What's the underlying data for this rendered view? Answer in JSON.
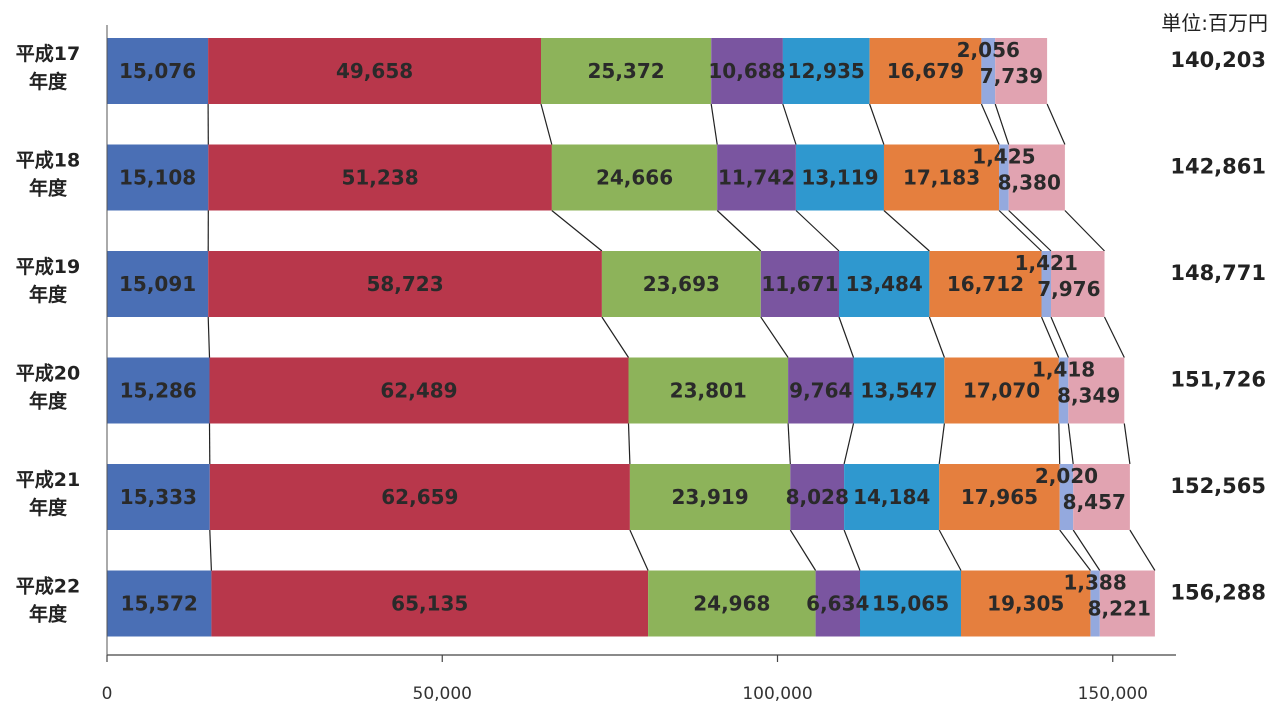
{
  "chart_data": {
    "type": "bar",
    "orientation": "horizontal",
    "stacked": true,
    "unit": "単位:百万円",
    "categories": [
      [
        "平成17",
        "年度"
      ],
      [
        "平成18",
        "年度"
      ],
      [
        "平成19",
        "年度"
      ],
      [
        "平成20",
        "年度"
      ],
      [
        "平成21",
        "年度"
      ],
      [
        "平成22",
        "年度"
      ]
    ],
    "series": [
      {
        "color": "#4a6fb5",
        "values": [
          15076,
          15108,
          15091,
          15286,
          15333,
          15572
        ]
      },
      {
        "color": "#b8374b",
        "values": [
          49658,
          51238,
          58723,
          62489,
          62659,
          65135
        ]
      },
      {
        "color": "#8db35a",
        "values": [
          25372,
          24666,
          23693,
          23801,
          23919,
          24968
        ]
      },
      {
        "color": "#7a55a0",
        "values": [
          10688,
          11742,
          11671,
          9764,
          8028,
          6634
        ]
      },
      {
        "color": "#2f98cf",
        "values": [
          12935,
          13119,
          13484,
          13547,
          14184,
          15065
        ]
      },
      {
        "color": "#e57f3e",
        "values": [
          16679,
          17183,
          16712,
          17070,
          17965,
          19305
        ]
      },
      {
        "color": "#94a9de",
        "values": [
          2056,
          1425,
          1421,
          1418,
          2020,
          1388
        ]
      },
      {
        "color": "#e1a3b1",
        "values": [
          7739,
          8380,
          7976,
          8349,
          8457,
          8221
        ]
      }
    ],
    "value_labels": [
      [
        "15,076",
        "49,658",
        "25,372",
        "10,688",
        "12,935",
        "16,679",
        "2,056",
        "7,739"
      ],
      [
        "15,108",
        "51,238",
        "24,666",
        "11,742",
        "13,119",
        "17,183",
        "1,425",
        "8,380"
      ],
      [
        "15,091",
        "58,723",
        "23,693",
        "11,671",
        "13,484",
        "16,712",
        "1,421",
        "7,976"
      ],
      [
        "15,286",
        "62,489",
        "23,801",
        "9,764",
        "13,547",
        "17,070",
        "1,418",
        "8,349"
      ],
      [
        "15,333",
        "62,659",
        "23,919",
        "8,028",
        "14,184",
        "17,965",
        "2,020",
        "8,457"
      ],
      [
        "15,572",
        "65,135",
        "24,968",
        "6,634",
        "15,065",
        "19,305",
        "1,388",
        "8,221"
      ]
    ],
    "totals": [
      140203,
      142861,
      148771,
      151726,
      152565,
      156288
    ],
    "total_labels": [
      "140,203",
      "142,861",
      "148,771",
      "151,726",
      "152,565",
      "156,288"
    ],
    "xlim": [
      0,
      160000
    ],
    "xticks": [
      0,
      50000,
      100000,
      150000
    ],
    "xtick_labels": [
      "0",
      "50,000",
      "100,000",
      "150,000"
    ],
    "connector_lines": true,
    "grid": false,
    "legend": "none"
  }
}
